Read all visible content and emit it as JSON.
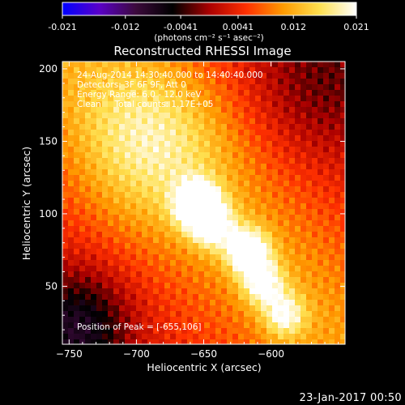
{
  "chart_data": {
    "type": "heatmap",
    "title": "Reconstructed RHESSI Image",
    "xlabel": "Heliocentric X (arcsec)",
    "ylabel": "Heliocentric Y (arcsec)",
    "xlim": [
      -755,
      -545
    ],
    "ylim": [
      10,
      205
    ],
    "x_ticks": [
      -750,
      -700,
      -650,
      -600
    ],
    "y_ticks": [
      50,
      100,
      150,
      200
    ],
    "colorbar": {
      "ticks": [
        "-0.021",
        "-0.012",
        "-0.0041",
        "0.0041",
        "0.012",
        "0.021"
      ],
      "unit_label": "(photons cm⁻² s⁻¹ asec⁻²)",
      "range": [
        -0.021,
        0.021
      ],
      "colormap": [
        "#0000ff",
        "#5a00c8",
        "#3c0a3c",
        "#000000",
        "#aa0000",
        "#ff3000",
        "#ff9a00",
        "#ffe050",
        "#ffffff"
      ]
    },
    "annotations": [
      "24-Aug-2014 14:30:40.000 to 14:40:40.000",
      "Detectors: 3F 6F 9F, Att 0",
      "Energy Range: 6.0 - 12.0 keV",
      "Clean     Total counts: 1.17E+05"
    ],
    "peak_text": "Position of Peak = [-655,106]",
    "peak": [
      -655,
      106
    ],
    "sources": [
      {
        "x": -655,
        "y": 106,
        "amp": 0.021
      },
      {
        "x": -643,
        "y": 92,
        "amp": 0.013
      },
      {
        "x": -617,
        "y": 74,
        "amp": 0.017
      },
      {
        "x": -606,
        "y": 52,
        "amp": 0.012
      },
      {
        "x": -590,
        "y": 30,
        "amp": 0.011
      },
      {
        "x": -690,
        "y": 150,
        "amp": 0.008
      }
    ]
  },
  "footer": {
    "date_stamp": "23-Jan-2017 00:50"
  }
}
